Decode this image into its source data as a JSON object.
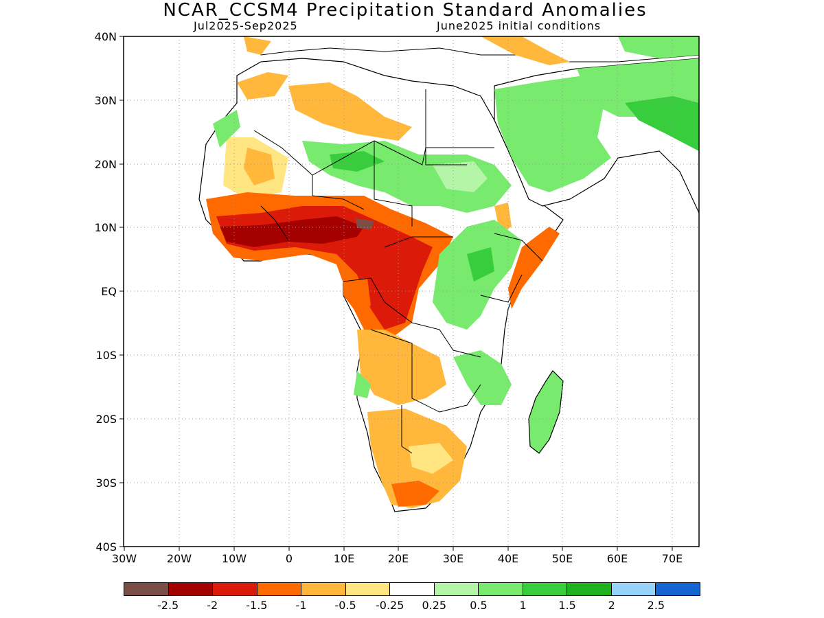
{
  "title": "NCAR_CCSM4 Precipitation Standard Anomalies",
  "subtitle_left": "Jul2025-Sep2025",
  "subtitle_right": "June2025 initial conditions",
  "lat_labels": [
    "40N",
    "30N",
    "20N",
    "10N",
    "EQ",
    "10S",
    "20S",
    "30S",
    "40S"
  ],
  "lon_labels": [
    "30W",
    "20W",
    "10W",
    "0",
    "10E",
    "20E",
    "30E",
    "40E",
    "50E",
    "60E",
    "70E"
  ],
  "colorbar": {
    "colors": [
      "#7a4e44",
      "#a40000",
      "#dc1a0a",
      "#ff6a00",
      "#ffb83c",
      "#ffe682",
      "#ffffff",
      "#b4f5a8",
      "#78ea6e",
      "#37cd3c",
      "#1eb21e",
      "#96d2fa",
      "#1464d2"
    ],
    "labels": [
      "-2.5",
      "-2",
      "-1.5",
      "-1",
      "-0.5",
      "-0.25",
      "0.25",
      "0.5",
      "1",
      "1.5",
      "2",
      "2.5"
    ]
  },
  "legend_icons": [
    "map-land-icon"
  ]
}
